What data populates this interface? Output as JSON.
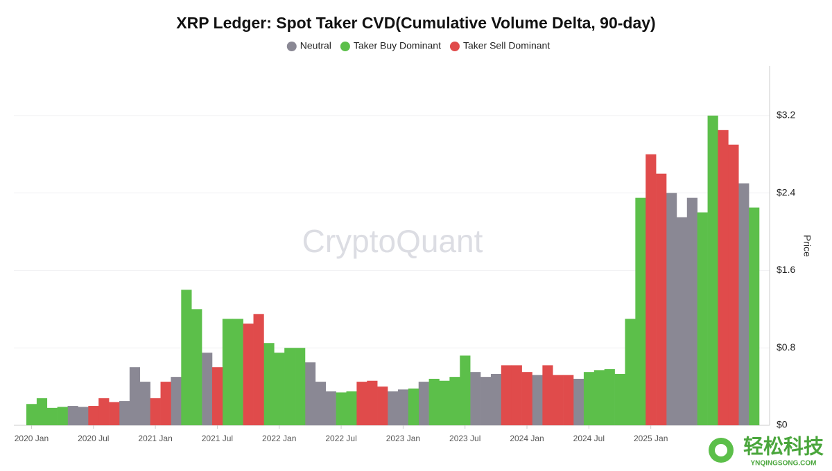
{
  "chart_data": {
    "type": "bar",
    "title": "XRP Ledger: Spot Taker CVD(Cumulative Volume Delta, 90-day)",
    "y_label": "Price",
    "watermark": "CryptoQuant",
    "corner_logo": "轻松科技",
    "corner_logo_url": "YNQINGSONG.COM",
    "legend": "top",
    "grid": true,
    "x": [
      "2020-01",
      "2020-02",
      "2020-03",
      "2020-04",
      "2020-05",
      "2020-06",
      "2020-07",
      "2020-08",
      "2020-09",
      "2020-10",
      "2020-11",
      "2020-12",
      "2021-01",
      "2021-02",
      "2021-03",
      "2021-04",
      "2021-05",
      "2021-06",
      "2021-07",
      "2021-08",
      "2021-09",
      "2021-10",
      "2021-11",
      "2021-12",
      "2022-01",
      "2022-02",
      "2022-03",
      "2022-04",
      "2022-05",
      "2022-06",
      "2022-07",
      "2022-08",
      "2022-09",
      "2022-10",
      "2022-11",
      "2022-12",
      "2023-01",
      "2023-02",
      "2023-03",
      "2023-04",
      "2023-05",
      "2023-06",
      "2023-07",
      "2023-08",
      "2023-09",
      "2023-10",
      "2023-11",
      "2023-12",
      "2024-01",
      "2024-02",
      "2024-03",
      "2024-04",
      "2024-05",
      "2024-06",
      "2024-07",
      "2024-08",
      "2024-09",
      "2024-10",
      "2024-11",
      "2024-12",
      "2025-01",
      "2025-02",
      "2025-03",
      "2025-04",
      "2025-05",
      "2025-06",
      "2025-07",
      "2025-08",
      "2025-09",
      "2025-10",
      "2025-11"
    ],
    "xticks": [
      {
        "value": "2020-01",
        "label": "2020 Jan"
      },
      {
        "value": "2020-07",
        "label": "2020 Jul"
      },
      {
        "value": "2021-01",
        "label": "2021 Jan"
      },
      {
        "value": "2021-07",
        "label": "2021 Jul"
      },
      {
        "value": "2022-01",
        "label": "2022 Jan"
      },
      {
        "value": "2022-07",
        "label": "2022 Jul"
      },
      {
        "value": "2023-01",
        "label": "2023 Jan"
      },
      {
        "value": "2023-07",
        "label": "2023 Jul"
      },
      {
        "value": "2024-01",
        "label": "2024 Jan"
      },
      {
        "value": "2024-07",
        "label": "2024 Jul"
      },
      {
        "value": "2025-01",
        "label": "2025 Jan"
      }
    ],
    "ylim": [
      0,
      3.7
    ],
    "yticks": [
      {
        "value": 0,
        "label": "$0"
      },
      {
        "value": 0.8,
        "label": "$0.8"
      },
      {
        "value": 1.6,
        "label": "$1.6"
      },
      {
        "value": 2.4,
        "label": "$2.4"
      },
      {
        "value": 3.2,
        "label": "$3.2"
      }
    ],
    "series": [
      {
        "name": "Neutral",
        "color": "#8a8894",
        "values": [
          null,
          null,
          null,
          null,
          0.2,
          0.19,
          null,
          null,
          null,
          0.25,
          0.6,
          0.45,
          null,
          null,
          0.5,
          null,
          null,
          0.75,
          null,
          null,
          null,
          null,
          null,
          null,
          null,
          null,
          null,
          0.65,
          0.45,
          0.35,
          null,
          null,
          null,
          null,
          null,
          0.35,
          0.37,
          null,
          0.45,
          null,
          null,
          null,
          null,
          0.55,
          0.5,
          0.53,
          null,
          null,
          null,
          0.52,
          null,
          null,
          null,
          0.48,
          null,
          null,
          null,
          null,
          null,
          null,
          null,
          null,
          2.4,
          2.15,
          2.35,
          null,
          null,
          null,
          null,
          2.5,
          null
        ]
      },
      {
        "name": "Taker Buy Dominant",
        "color": "#5cbf4a",
        "values": [
          0.22,
          0.28,
          0.18,
          0.19,
          null,
          null,
          null,
          null,
          null,
          null,
          null,
          null,
          null,
          null,
          null,
          1.4,
          1.2,
          null,
          null,
          1.1,
          1.1,
          null,
          null,
          0.85,
          0.75,
          0.8,
          0.8,
          null,
          null,
          null,
          0.34,
          0.35,
          null,
          null,
          null,
          null,
          null,
          0.38,
          null,
          0.48,
          0.46,
          0.5,
          0.72,
          null,
          null,
          null,
          null,
          null,
          null,
          null,
          null,
          null,
          null,
          null,
          0.55,
          0.57,
          0.58,
          0.53,
          1.1,
          2.35,
          null,
          null,
          null,
          null,
          null,
          2.2,
          3.2,
          null,
          null,
          null,
          2.25
        ]
      },
      {
        "name": "Taker Sell Dominant",
        "color": "#e04b4b",
        "values": [
          null,
          null,
          null,
          null,
          null,
          null,
          0.2,
          0.28,
          0.24,
          null,
          null,
          null,
          0.28,
          0.45,
          null,
          null,
          null,
          null,
          0.6,
          null,
          null,
          1.05,
          1.15,
          null,
          null,
          null,
          null,
          null,
          null,
          null,
          null,
          null,
          0.45,
          0.46,
          0.4,
          null,
          null,
          null,
          null,
          null,
          null,
          null,
          null,
          null,
          null,
          null,
          0.62,
          0.62,
          0.55,
          null,
          0.62,
          0.52,
          0.52,
          null,
          null,
          null,
          null,
          null,
          null,
          null,
          2.8,
          2.6,
          null,
          null,
          null,
          null,
          null,
          3.05,
          2.9,
          null,
          null
        ]
      }
    ]
  }
}
